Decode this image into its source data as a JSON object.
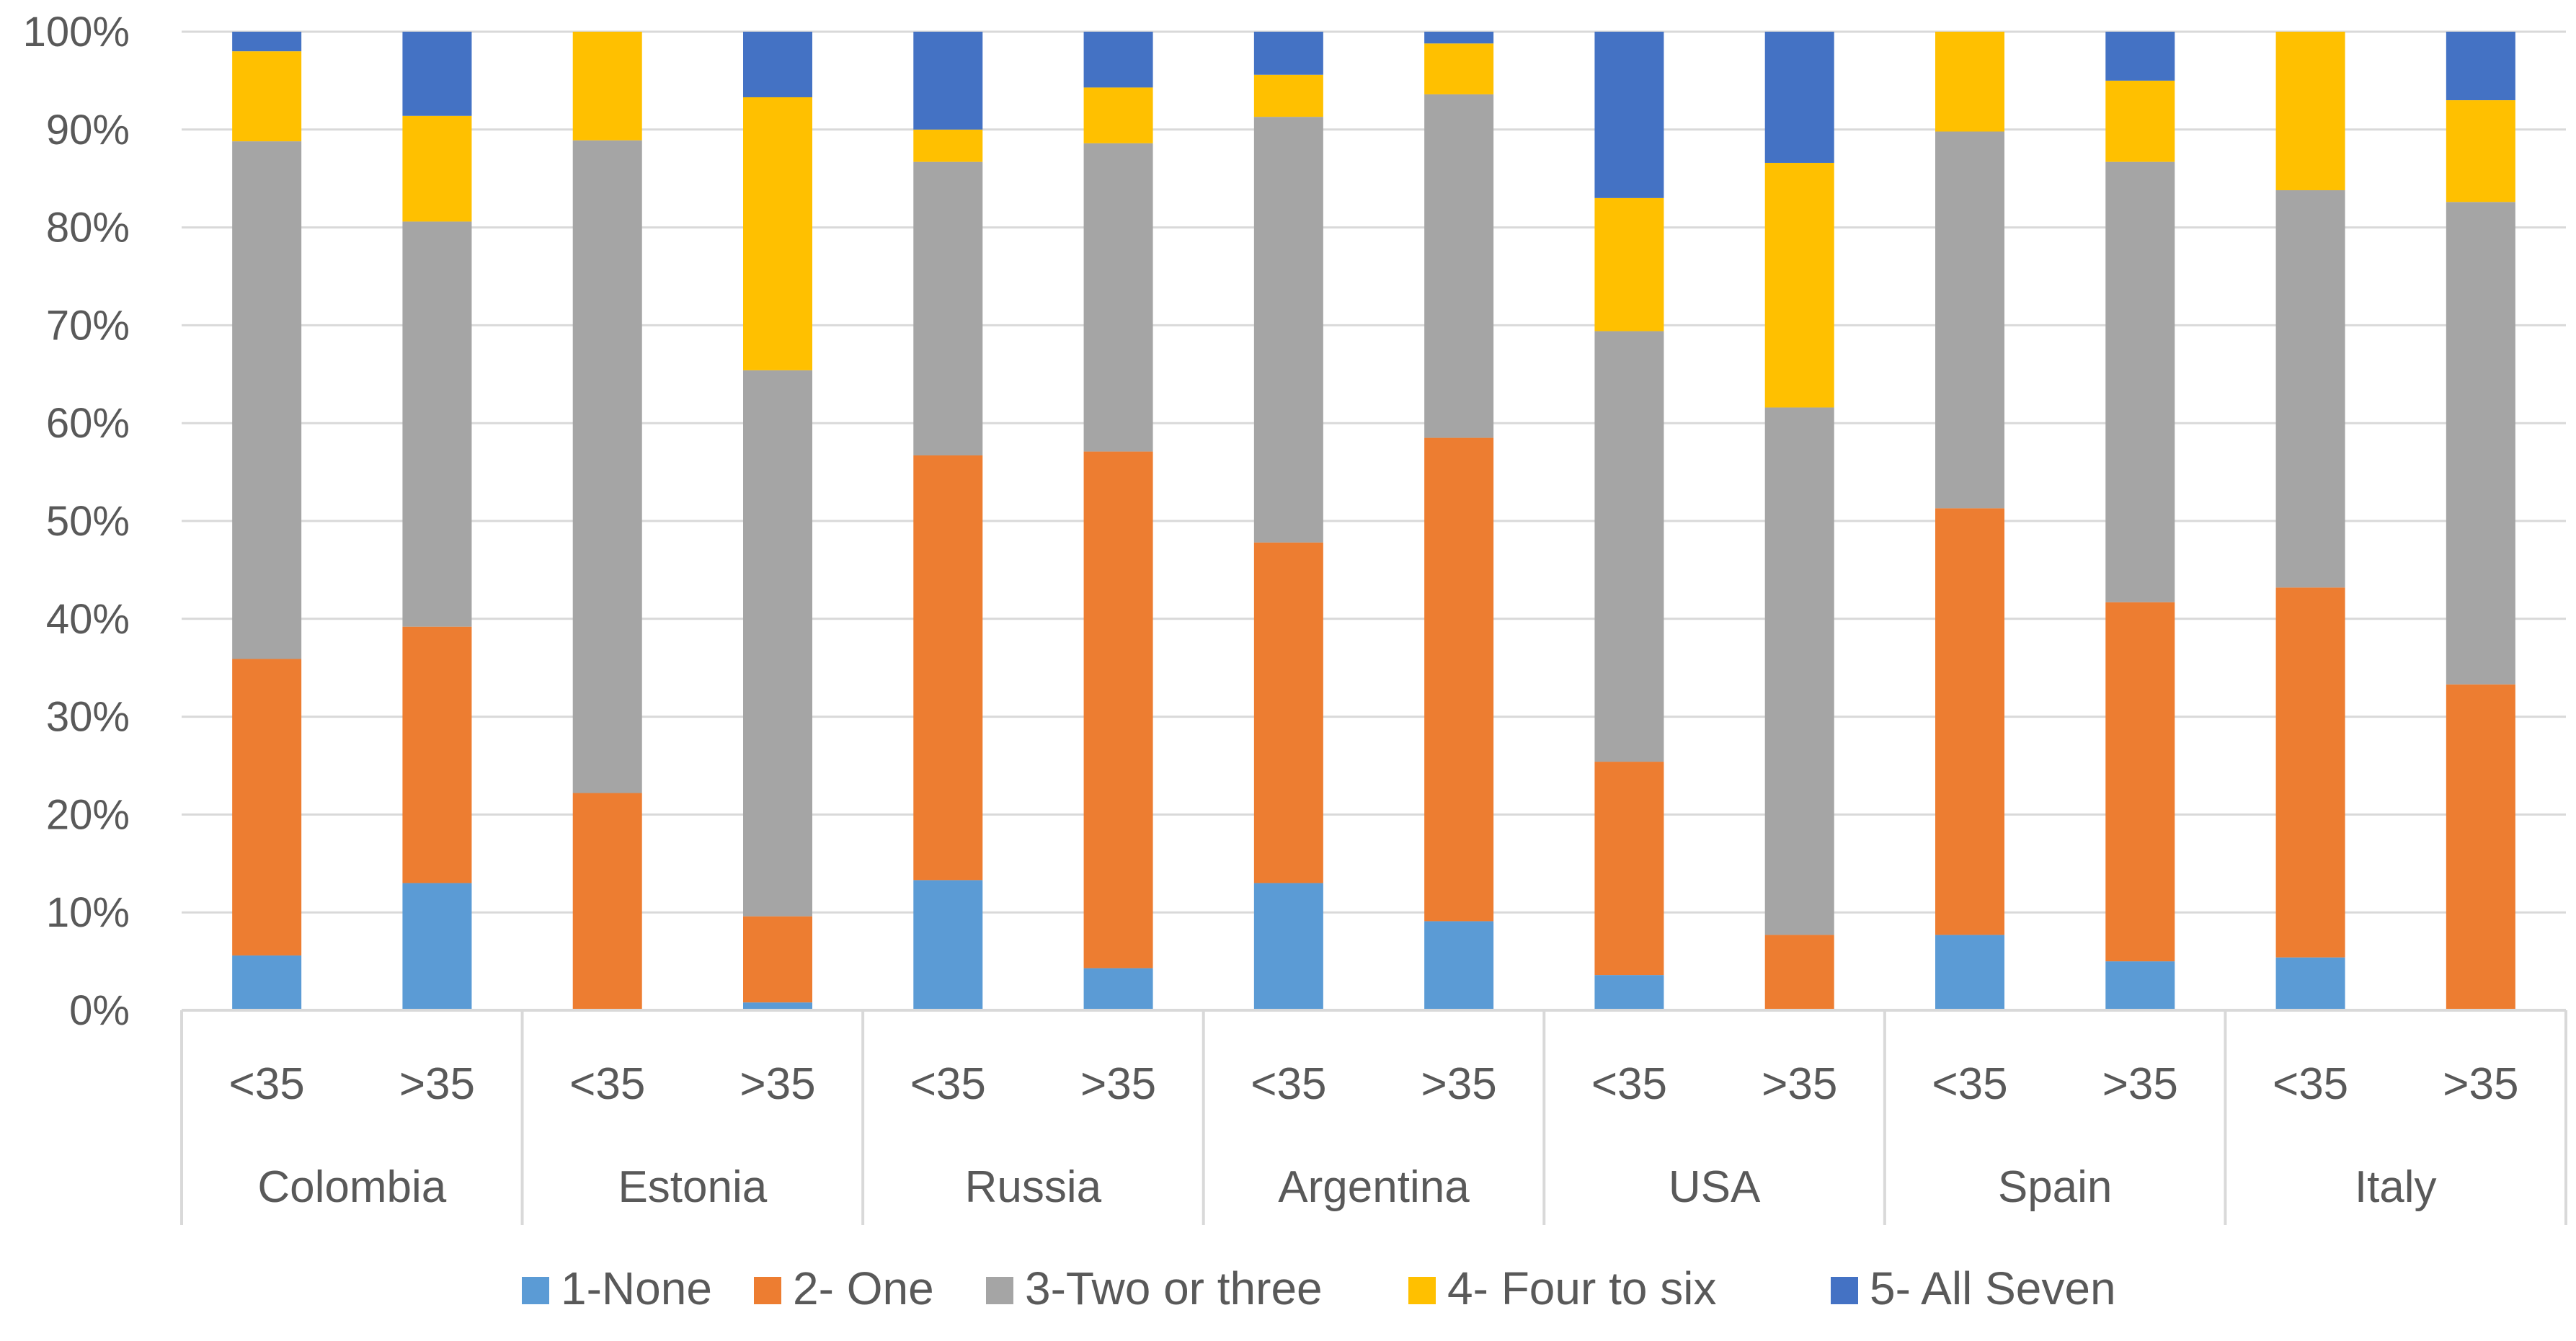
{
  "chart_data": {
    "type": "bar",
    "stacked": true,
    "percent": true,
    "title": "",
    "xlabel": "",
    "ylabel": "",
    "ylim": [
      0,
      100
    ],
    "y_ticks": [
      "0%",
      "10%",
      "20%",
      "30%",
      "40%",
      "50%",
      "60%",
      "70%",
      "80%",
      "90%",
      "100%"
    ],
    "grid": true,
    "legend_position": "bottom",
    "groups": [
      "Colombia",
      "Estonia",
      "Russia",
      "Argentina",
      "USA",
      "Spain",
      "Italy"
    ],
    "subcategories": [
      "<35",
      ">35"
    ],
    "categories": [
      "Colombia <35",
      "Colombia >35",
      "Estonia <35",
      "Estonia >35",
      "Russia <35",
      "Russia >35",
      "Argentina <35",
      "Argentina >35",
      "USA <35",
      "USA >35",
      "Spain <35",
      "Spain >35",
      "Italy <35",
      "Italy >35"
    ],
    "series": [
      {
        "name": "1-None",
        "color": "#5B9BD5",
        "values": [
          5.6,
          13.0,
          0.0,
          0.8,
          13.3,
          4.3,
          13.0,
          9.1,
          3.6,
          0.0,
          7.7,
          5.0,
          5.4,
          0.0
        ]
      },
      {
        "name": "2- One",
        "color": "#ED7D31",
        "values": [
          30.3,
          26.2,
          22.2,
          8.8,
          43.4,
          52.8,
          34.8,
          49.4,
          21.8,
          7.7,
          43.6,
          36.7,
          37.8,
          33.3
        ]
      },
      {
        "name": "3-Two or three",
        "color": "#A5A5A5",
        "values": [
          52.9,
          41.4,
          66.7,
          55.8,
          30.0,
          31.5,
          43.5,
          35.1,
          44.0,
          53.9,
          38.5,
          45.0,
          40.6,
          49.3
        ]
      },
      {
        "name": "4- Four to six",
        "color": "#FFC000",
        "values": [
          9.2,
          10.8,
          11.1,
          27.9,
          3.3,
          5.7,
          4.3,
          5.2,
          13.6,
          25.0,
          10.2,
          8.3,
          16.2,
          10.4
        ]
      },
      {
        "name": "5- All Seven",
        "color": "#4472C4",
        "values": [
          2.0,
          8.6,
          0.0,
          6.7,
          10.0,
          5.7,
          4.4,
          1.2,
          17.0,
          13.4,
          0.0,
          5.0,
          0.0,
          7.0
        ]
      }
    ]
  }
}
